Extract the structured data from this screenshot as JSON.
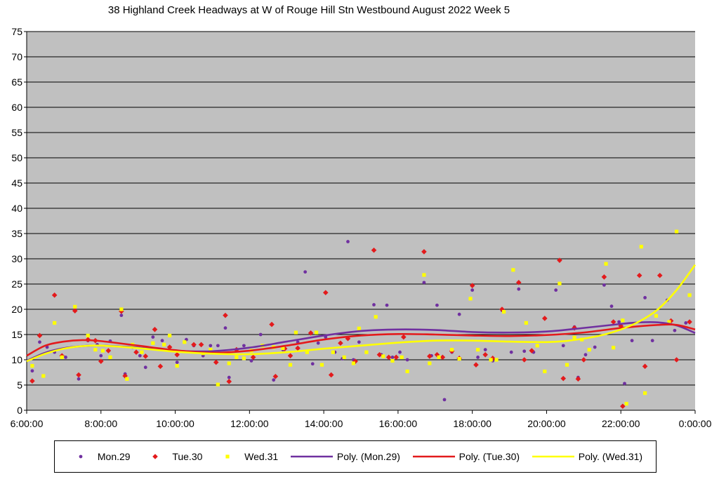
{
  "chart_data": {
    "type": "scatter",
    "title": "38 Highland Creek Headways at W of Rouge Hill Stn Westbound August 2022  Week 5",
    "xlabel": "",
    "ylabel": "",
    "x_range_hours": [
      6,
      24
    ],
    "ylim": [
      0,
      75
    ],
    "y_ticks": [
      "0",
      "5",
      "10",
      "15",
      "20",
      "25",
      "30",
      "35",
      "40",
      "45",
      "50",
      "55",
      "60",
      "65",
      "70",
      "75"
    ],
    "x_ticks": [
      "6:00:00",
      "8:00:00",
      "10:00:00",
      "12:00:00",
      "14:00:00",
      "16:00:00",
      "18:00:00",
      "20:00:00",
      "22:00:00",
      "0:00:00"
    ],
    "grid": "horizontal",
    "plot_background": "#c0c0c0",
    "legend_position": "bottom",
    "series": [
      {
        "name": "Mon.29",
        "marker": "circle",
        "color": "#7030a0",
        "points": [
          [
            6.15,
            7.8
          ],
          [
            6.35,
            13.5
          ],
          [
            6.55,
            12.5
          ],
          [
            6.75,
            11.5
          ],
          [
            7.05,
            10.5
          ],
          [
            7.3,
            20
          ],
          [
            7.4,
            6.2
          ],
          [
            7.65,
            13.8
          ],
          [
            7.9,
            13
          ],
          [
            8.0,
            10.8
          ],
          [
            8.25,
            13.7
          ],
          [
            8.55,
            18.8
          ],
          [
            8.65,
            7.2
          ],
          [
            8.85,
            12.5
          ],
          [
            9.05,
            10.8
          ],
          [
            9.2,
            8.5
          ],
          [
            9.4,
            14.5
          ],
          [
            9.65,
            13.8
          ],
          [
            9.85,
            12.5
          ],
          [
            10.05,
            9.5
          ],
          [
            10.3,
            14
          ],
          [
            10.5,
            12.8
          ],
          [
            10.75,
            10.8
          ],
          [
            10.95,
            12.8
          ],
          [
            11.15,
            12.8
          ],
          [
            11.35,
            16.3
          ],
          [
            11.45,
            6.5
          ],
          [
            11.65,
            11.8
          ],
          [
            11.85,
            12.8
          ],
          [
            12.05,
            9.8
          ],
          [
            12.3,
            15
          ],
          [
            12.65,
            6
          ],
          [
            12.9,
            12
          ],
          [
            13.1,
            10.8
          ],
          [
            13.3,
            13.5
          ],
          [
            13.5,
            27.4
          ],
          [
            13.7,
            9.2
          ],
          [
            13.85,
            13.3
          ],
          [
            14.05,
            14.5
          ],
          [
            14.3,
            11.5
          ],
          [
            14.5,
            10.2
          ],
          [
            14.65,
            33.4
          ],
          [
            14.8,
            10
          ],
          [
            14.95,
            13.5
          ],
          [
            15.35,
            20.9
          ],
          [
            15.55,
            11
          ],
          [
            15.7,
            20.8
          ],
          [
            15.85,
            10.5
          ],
          [
            16.05,
            11.5
          ],
          [
            16.25,
            10
          ],
          [
            16.7,
            25.3
          ],
          [
            16.9,
            10.8
          ],
          [
            17.05,
            20.8
          ],
          [
            17.25,
            2.1
          ],
          [
            17.45,
            11.5
          ],
          [
            17.65,
            19
          ],
          [
            18.0,
            23.8
          ],
          [
            18.15,
            10.5
          ],
          [
            18.35,
            12
          ],
          [
            18.55,
            9.8
          ],
          [
            18.8,
            19.8
          ],
          [
            19.05,
            11.5
          ],
          [
            19.25,
            24
          ],
          [
            19.4,
            11.7
          ],
          [
            19.65,
            11.5
          ],
          [
            19.95,
            18.2
          ],
          [
            20.25,
            23.8
          ],
          [
            20.45,
            12.8
          ],
          [
            20.75,
            16.5
          ],
          [
            20.85,
            6.5
          ],
          [
            21.05,
            11
          ],
          [
            21.3,
            12.5
          ],
          [
            21.55,
            24.8
          ],
          [
            21.75,
            20.6
          ],
          [
            21.95,
            17.5
          ],
          [
            22.1,
            5.3
          ],
          [
            22.3,
            13.8
          ],
          [
            22.65,
            22.3
          ],
          [
            22.85,
            13.8
          ],
          [
            23.25,
            21.8
          ],
          [
            23.45,
            15.8
          ],
          [
            23.75,
            17.3
          ]
        ]
      },
      {
        "name": "Tue.30",
        "marker": "diamond",
        "color": "#e31a1c",
        "points": [
          [
            6.15,
            5.8
          ],
          [
            6.35,
            14.8
          ],
          [
            6.75,
            22.8
          ],
          [
            6.95,
            10.8
          ],
          [
            7.3,
            19.7
          ],
          [
            7.4,
            7
          ],
          [
            7.65,
            14
          ],
          [
            7.85,
            13.8
          ],
          [
            8.0,
            9.7
          ],
          [
            8.2,
            11.8
          ],
          [
            8.55,
            19.6
          ],
          [
            8.65,
            6.8
          ],
          [
            8.95,
            11.5
          ],
          [
            9.2,
            10.7
          ],
          [
            9.45,
            16
          ],
          [
            9.6,
            8.7
          ],
          [
            9.85,
            12.5
          ],
          [
            10.05,
            11
          ],
          [
            10.5,
            13
          ],
          [
            10.7,
            13
          ],
          [
            11.1,
            9.5
          ],
          [
            11.35,
            18.8
          ],
          [
            11.45,
            5.7
          ],
          [
            11.65,
            12
          ],
          [
            12.1,
            10.5
          ],
          [
            12.6,
            17
          ],
          [
            12.7,
            6.7
          ],
          [
            12.95,
            12.2
          ],
          [
            13.1,
            10.8
          ],
          [
            13.3,
            12.3
          ],
          [
            13.65,
            15.3
          ],
          [
            14.05,
            23.3
          ],
          [
            14.2,
            7
          ],
          [
            14.45,
            13.3
          ],
          [
            14.65,
            14.2
          ],
          [
            14.85,
            9.7
          ],
          [
            15.35,
            31.7
          ],
          [
            15.5,
            11
          ],
          [
            15.75,
            10.5
          ],
          [
            15.95,
            10.5
          ],
          [
            16.15,
            14.5
          ],
          [
            16.7,
            31.4
          ],
          [
            16.85,
            10.7
          ],
          [
            17.05,
            11
          ],
          [
            17.2,
            10.5
          ],
          [
            17.45,
            11.7
          ],
          [
            17.65,
            10.3
          ],
          [
            18.0,
            24.7
          ],
          [
            18.1,
            9
          ],
          [
            18.35,
            11
          ],
          [
            18.55,
            10.3
          ],
          [
            18.8,
            20
          ],
          [
            19.25,
            25.3
          ],
          [
            19.4,
            10
          ],
          [
            19.6,
            11.8
          ],
          [
            19.95,
            18.2
          ],
          [
            20.35,
            29.7
          ],
          [
            20.45,
            6.3
          ],
          [
            20.75,
            16.3
          ],
          [
            20.85,
            6.2
          ],
          [
            21.0,
            10
          ],
          [
            21.55,
            26.4
          ],
          [
            21.8,
            17.5
          ],
          [
            22.0,
            16.7
          ],
          [
            22.05,
            0.8
          ],
          [
            22.5,
            26.7
          ],
          [
            22.65,
            8.7
          ],
          [
            23.05,
            26.7
          ],
          [
            23.35,
            17.7
          ],
          [
            23.5,
            10
          ],
          [
            23.85,
            17.5
          ]
        ]
      },
      {
        "name": "Wed.31",
        "marker": "square",
        "color": "#ffff00",
        "points": [
          [
            6.15,
            8.8
          ],
          [
            6.45,
            6.8
          ],
          [
            6.75,
            17.3
          ],
          [
            6.95,
            10.5
          ],
          [
            7.3,
            20.5
          ],
          [
            7.65,
            14.8
          ],
          [
            7.85,
            12
          ],
          [
            8.05,
            11.8
          ],
          [
            8.25,
            10.5
          ],
          [
            8.55,
            20
          ],
          [
            8.7,
            6.2
          ],
          [
            8.85,
            13
          ],
          [
            9.1,
            11.5
          ],
          [
            9.4,
            13.3
          ],
          [
            9.7,
            13
          ],
          [
            9.85,
            14.8
          ],
          [
            10.05,
            8.8
          ],
          [
            10.25,
            13.5
          ],
          [
            10.75,
            11.3
          ],
          [
            10.95,
            12
          ],
          [
            11.15,
            5.1
          ],
          [
            11.45,
            9.3
          ],
          [
            11.65,
            10.5
          ],
          [
            11.85,
            10.3
          ],
          [
            12.05,
            11.8
          ],
          [
            12.35,
            12.8
          ],
          [
            12.65,
            12.5
          ],
          [
            12.9,
            12.3
          ],
          [
            13.1,
            9
          ],
          [
            13.25,
            15.4
          ],
          [
            13.55,
            11.5
          ],
          [
            13.8,
            15.4
          ],
          [
            13.95,
            9
          ],
          [
            14.25,
            11.5
          ],
          [
            14.55,
            10.5
          ],
          [
            14.8,
            9.3
          ],
          [
            14.95,
            16.2
          ],
          [
            15.15,
            11.5
          ],
          [
            15.4,
            18.5
          ],
          [
            15.6,
            10.7
          ],
          [
            15.85,
            9.8
          ],
          [
            16.1,
            10.5
          ],
          [
            16.25,
            7.7
          ],
          [
            16.7,
            26.8
          ],
          [
            16.85,
            9.3
          ],
          [
            17.1,
            10.5
          ],
          [
            17.45,
            12
          ],
          [
            17.65,
            10.2
          ],
          [
            17.95,
            22.1
          ],
          [
            18.15,
            12
          ],
          [
            18.5,
            10
          ],
          [
            18.65,
            10
          ],
          [
            18.85,
            19.5
          ],
          [
            19.1,
            27.8
          ],
          [
            19.45,
            17.3
          ],
          [
            19.75,
            12.8
          ],
          [
            19.95,
            7.7
          ],
          [
            20.35,
            25.1
          ],
          [
            20.55,
            9
          ],
          [
            20.75,
            14.4
          ],
          [
            20.95,
            14
          ],
          [
            21.15,
            12
          ],
          [
            21.6,
            29
          ],
          [
            21.8,
            12.4
          ],
          [
            22.05,
            17.8
          ],
          [
            22.15,
            1.3
          ],
          [
            22.55,
            32.4
          ],
          [
            22.65,
            3.4
          ],
          [
            22.95,
            18.7
          ],
          [
            23.3,
            17.5
          ],
          [
            23.5,
            35.4
          ],
          [
            23.85,
            22.8
          ]
        ]
      }
    ],
    "trendlines": [
      {
        "name": "Poly. (Mon.29)",
        "color": "#7030a0",
        "points": [
          [
            6,
            9.8
          ],
          [
            6.5,
            11.4
          ],
          [
            7,
            12.3
          ],
          [
            7.5,
            12.7
          ],
          [
            8,
            12.8
          ],
          [
            9,
            12.4
          ],
          [
            10,
            11.8
          ],
          [
            11,
            11.7
          ],
          [
            12,
            12.4
          ],
          [
            13,
            13.6
          ],
          [
            14,
            14.8
          ],
          [
            15,
            15.7
          ],
          [
            16,
            16
          ],
          [
            17,
            15.9
          ],
          [
            18,
            15.5
          ],
          [
            19,
            15.4
          ],
          [
            20,
            15.6
          ],
          [
            21,
            16.3
          ],
          [
            22,
            17.1
          ],
          [
            22.5,
            17.4
          ],
          [
            23,
            17.4
          ],
          [
            23.5,
            16.8
          ],
          [
            24,
            15.3
          ]
        ]
      },
      {
        "name": "Poly. (Tue.30)",
        "color": "#e31a1c",
        "points": [
          [
            6,
            10.8
          ],
          [
            6.5,
            12.8
          ],
          [
            7,
            13.6
          ],
          [
            7.5,
            13.9
          ],
          [
            8,
            13.7
          ],
          [
            9,
            12.8
          ],
          [
            10,
            11.9
          ],
          [
            11,
            11.4
          ],
          [
            12,
            11.8
          ],
          [
            13,
            12.8
          ],
          [
            14,
            14
          ],
          [
            15,
            14.8
          ],
          [
            16,
            15.1
          ],
          [
            17,
            15
          ],
          [
            18,
            14.8
          ],
          [
            19,
            14.7
          ],
          [
            20,
            14.9
          ],
          [
            21,
            15.4
          ],
          [
            22,
            16.3
          ],
          [
            23,
            16.9
          ],
          [
            23.5,
            16.9
          ],
          [
            24,
            16
          ]
        ]
      },
      {
        "name": "Poly. (Wed.31)",
        "color": "#ffff00",
        "points": [
          [
            6,
            9.7
          ],
          [
            6.5,
            11.2
          ],
          [
            7,
            12.2
          ],
          [
            7.5,
            12.7
          ],
          [
            8,
            12.8
          ],
          [
            9,
            12.3
          ],
          [
            10,
            11.6
          ],
          [
            11,
            11.2
          ],
          [
            12,
            11.1
          ],
          [
            13,
            11.5
          ],
          [
            14,
            12.2
          ],
          [
            15,
            12.8
          ],
          [
            16,
            13.4
          ],
          [
            17,
            13.8
          ],
          [
            18,
            13.8
          ],
          [
            19,
            13.6
          ],
          [
            20,
            13.5
          ],
          [
            20.5,
            13.7
          ],
          [
            21,
            14.2
          ],
          [
            21.5,
            14.9
          ],
          [
            22,
            16
          ],
          [
            22.5,
            17.6
          ],
          [
            23,
            20
          ],
          [
            23.5,
            23.8
          ],
          [
            24,
            28.8
          ]
        ]
      }
    ]
  }
}
